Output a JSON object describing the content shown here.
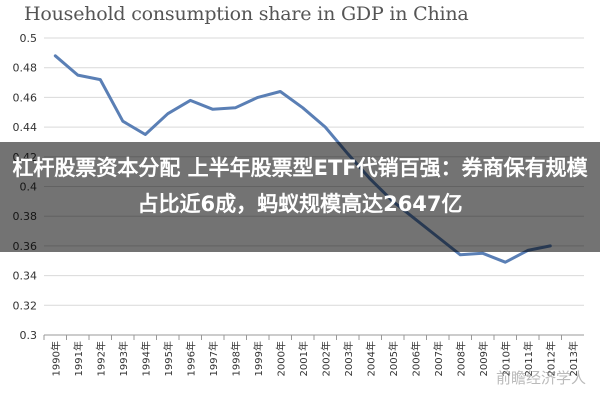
{
  "chart_data": {
    "type": "line",
    "title": "Household consumption share in GDP in China",
    "xlabel": "",
    "ylabel": "",
    "ylim": [
      0.3,
      0.5
    ],
    "y_ticks": [
      "0.3",
      "0.32",
      "0.34",
      "0.36",
      "0.38",
      "0.4",
      "0.42",
      "0.44",
      "0.46",
      "0.48",
      "0.5"
    ],
    "categories": [
      "1990年",
      "1991年",
      "1992年",
      "1993年",
      "1994年",
      "1995年",
      "1996年",
      "1997年",
      "1998年",
      "1999年",
      "2000年",
      "2001年",
      "2002年",
      "2003年",
      "2004年",
      "2005年",
      "2006年",
      "2007年",
      "2008年",
      "2009年",
      "2010年",
      "2011年",
      "2012年",
      "2013年"
    ],
    "series": [
      {
        "values": [
          0.488,
          0.475,
          0.472,
          0.444,
          0.435,
          0.449,
          0.458,
          0.452,
          0.453,
          0.46,
          0.464,
          0.453,
          0.44,
          0.422,
          0.405,
          0.39,
          0.378,
          0.366,
          0.354,
          0.355,
          0.349,
          0.357,
          0.36,
          null
        ],
        "color": "#5a7fb5"
      }
    ],
    "grid": "horizontal",
    "legend": "none"
  },
  "headline": {
    "text": "杠杆股票资本分配 上半年股票型ETF代销百强：券商保有规模占比近6成，蚂蚁规模高达2647亿"
  },
  "watermark": {
    "text": "前瞻经济学人"
  }
}
